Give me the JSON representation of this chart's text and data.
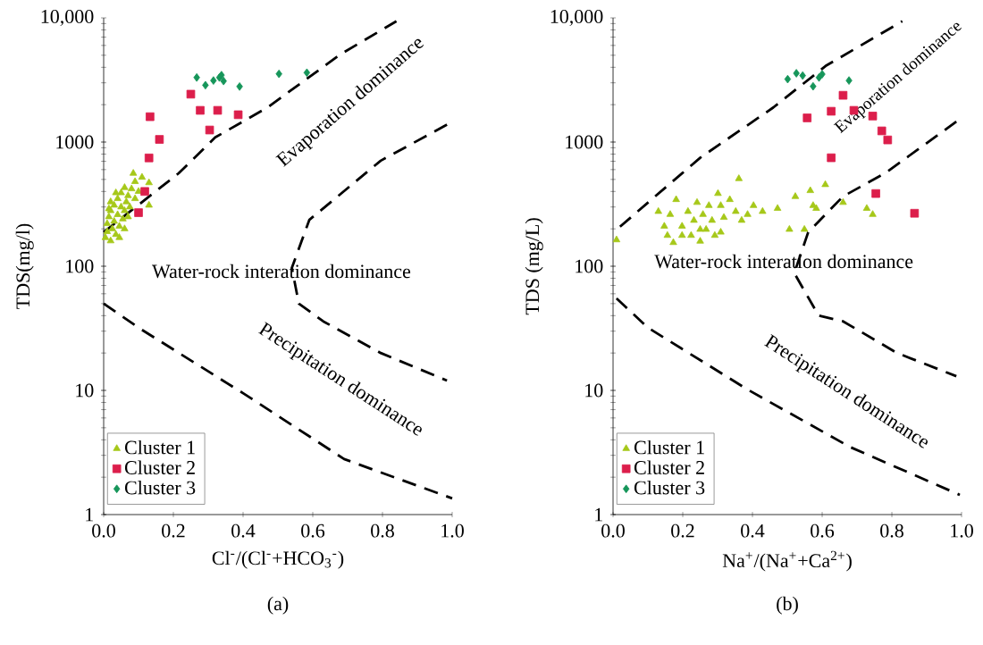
{
  "chart_data": [
    {
      "type": "scatter",
      "title": "(a)",
      "xlabel": "Cl$^{-}$/(Cl$^{-}$+HCO$_{3}$$^{-}$)",
      "ylabel": "TDS(mg/l)",
      "log": "y",
      "legend": "bottom left",
      "xlim": [
        0,
        1
      ],
      "ylim": [
        1,
        10000
      ],
      "xticks": [
        {
          "value": 0,
          "label": "0.0"
        },
        {
          "value": 0.2,
          "label": "0.2"
        },
        {
          "value": 0.4,
          "label": "0.4"
        },
        {
          "value": 0.6,
          "label": "0.6"
        },
        {
          "value": 0.8,
          "label": "0.8"
        },
        {
          "value": 1,
          "label": "1.0"
        }
      ],
      "yticks": [
        1,
        10,
        100,
        1000,
        {
          "value": 10000,
          "label": "10,000"
        }
      ],
      "annotations": [
        "Evaporation dominance",
        "Water-rock interation dominance",
        "Precipitation dominance"
      ],
      "series": [
        {
          "type": "line",
          "color": "#000000",
          "line_style": "dashed",
          "marker": "none",
          "x": [
            0,
            0.215,
            0.32,
            0.47,
            0.68,
            0.84
          ],
          "values": [
            188,
            560,
            1090,
            1900,
            5100,
            9400
          ]
        },
        {
          "type": "line",
          "color": "#000000",
          "line_style": "dashed",
          "marker": "none",
          "x": [
            0,
            0.1,
            0.4,
            0.69,
            1.0
          ],
          "values": [
            50,
            32,
            9.5,
            2.8,
            1.35
          ]
        },
        {
          "type": "line",
          "color": "#000000",
          "line_style": "dashed",
          "marker": "none",
          "x": [
            0.985,
            0.795,
            0.59,
            0.54,
            0.56,
            0.63,
            0.795,
            0.985
          ],
          "values": [
            1380,
            708,
            236,
            97,
            50,
            36,
            20,
            12
          ]
        },
        {
          "name": "Cluster 1",
          "color": "#a6c819",
          "marker": "triangle",
          "x": [
            0.005,
            0.01,
            0.01,
            0.015,
            0.02,
            0.02,
            0.025,
            0.03,
            0.03,
            0.035,
            0.04,
            0.04,
            0.045,
            0.05,
            0.05,
            0.055,
            0.06,
            0.06,
            0.065,
            0.07,
            0.07,
            0.075,
            0.08,
            0.085,
            0.09,
            0.09,
            0.1,
            0.11,
            0.13,
            0.13,
            0.02,
            0.035,
            0.045,
            0.015,
            0.06
          ],
          "values": [
            170,
            190,
            220,
            250,
            160,
            280,
            200,
            310,
            230,
            180,
            260,
            350,
            210,
            300,
            390,
            240,
            280,
            430,
            330,
            250,
            370,
            300,
            420,
            560,
            350,
            480,
            400,
            520,
            470,
            310,
            330,
            390,
            170,
            290,
            200
          ]
        },
        {
          "name": "Cluster 2",
          "color": "#dc1e4b",
          "marker": "square",
          "x": [
            0.25,
            0.277,
            0.304,
            0.327,
            0.386,
            0.133,
            0.16,
            0.13,
            0.1,
            0.118
          ],
          "values": [
            2430,
            1800,
            1250,
            1800,
            1660,
            1600,
            1050,
            745,
            270,
            400
          ]
        },
        {
          "name": "Cluster 3",
          "color": "#16965a",
          "marker": "diamond",
          "x": [
            0.267,
            0.292,
            0.315,
            0.332,
            0.338,
            0.344,
            0.39,
            0.503,
            0.583
          ],
          "values": [
            3310,
            2870,
            3130,
            3310,
            3460,
            3100,
            2800,
            3540,
            3620
          ]
        }
      ]
    },
    {
      "type": "scatter",
      "title": "(b)",
      "xlabel": "Na$^{+}$/(Na$^{+}$+Ca$^{2+}$)",
      "ylabel": "TDS (mg/L)",
      "log": "y",
      "legend": "bottom left",
      "xlim": [
        0,
        1
      ],
      "ylim": [
        1,
        10000
      ],
      "xticks": [
        {
          "value": 0,
          "label": "0.0"
        },
        {
          "value": 0.2,
          "label": "0.2"
        },
        {
          "value": 0.4,
          "label": "0.4"
        },
        {
          "value": 0.6,
          "label": "0.6"
        },
        {
          "value": 0.8,
          "label": "0.8"
        },
        {
          "value": 1,
          "label": "1.0"
        }
      ],
      "yticks": [
        1,
        10,
        100,
        1000,
        {
          "value": 10000,
          "label": "10,000"
        }
      ],
      "annotations": [
        "Evaporation dominance",
        "Water-rock interation dominance",
        "Precipitation dominance"
      ],
      "series": [
        {
          "type": "line",
          "color": "#000000",
          "line_style": "dashed",
          "marker": "none",
          "x": [
            0.02,
            0.11,
            0.25,
            0.46,
            0.61,
            0.83
          ],
          "values": [
            208,
            344,
            747,
            1900,
            4100,
            9400
          ]
        },
        {
          "type": "line",
          "color": "#000000",
          "line_style": "dashed",
          "marker": "none",
          "x": [
            0.01,
            0.1,
            0.385,
            0.68,
            0.995
          ],
          "values": [
            55,
            32,
            10.2,
            3.5,
            1.44
          ]
        },
        {
          "type": "line",
          "color": "#000000",
          "line_style": "dashed",
          "marker": "none",
          "x": [
            0.985,
            0.78,
            0.66,
            0.56,
            0.52,
            0.59,
            0.66,
            0.815,
            0.985
          ],
          "values": [
            1460,
            560,
            365,
            188,
            88,
            40,
            36,
            20,
            13
          ]
        },
        {
          "name": "Cluster 1",
          "color": "#a6c819",
          "marker": "triangle",
          "x": [
            0.01,
            0.13,
            0.147,
            0.164,
            0.173,
            0.181,
            0.198,
            0.215,
            0.224,
            0.232,
            0.241,
            0.25,
            0.258,
            0.267,
            0.275,
            0.284,
            0.292,
            0.301,
            0.309,
            0.318,
            0.335,
            0.352,
            0.361,
            0.369,
            0.386,
            0.403,
            0.429,
            0.472,
            0.506,
            0.523,
            0.549,
            0.566,
            0.574,
            0.583,
            0.609,
            0.66,
            0.728,
            0.745,
            0.309,
            0.25,
            0.198,
            0.156
          ],
          "values": [
            163,
            276,
            210,
            261,
            155,
            344,
            210,
            276,
            177,
            234,
            326,
            159,
            261,
            198,
            308,
            234,
            177,
            385,
            308,
            247,
            344,
            276,
            507,
            234,
            261,
            308,
            276,
            292,
            198,
            364,
            198,
            406,
            308,
            292,
            454,
            326,
            292,
            261,
            188,
            198,
            177,
            177
          ]
        },
        {
          "name": "Cluster 2",
          "color": "#dc1e4b",
          "marker": "square",
          "x": [
            0.557,
            0.626,
            0.66,
            0.691,
            0.745,
            0.771,
            0.788,
            0.626,
            0.754,
            0.865
          ],
          "values": [
            1565,
            1770,
            2380,
            1800,
            1620,
            1230,
            1040,
            747,
            385,
            267
          ]
        },
        {
          "name": "Cluster 3",
          "color": "#16965a",
          "marker": "diamond",
          "x": [
            0.501,
            0.526,
            0.544,
            0.574,
            0.591,
            0.6,
            0.677
          ],
          "values": [
            3210,
            3580,
            3430,
            2810,
            3310,
            3520,
            3130
          ]
        }
      ]
    }
  ]
}
